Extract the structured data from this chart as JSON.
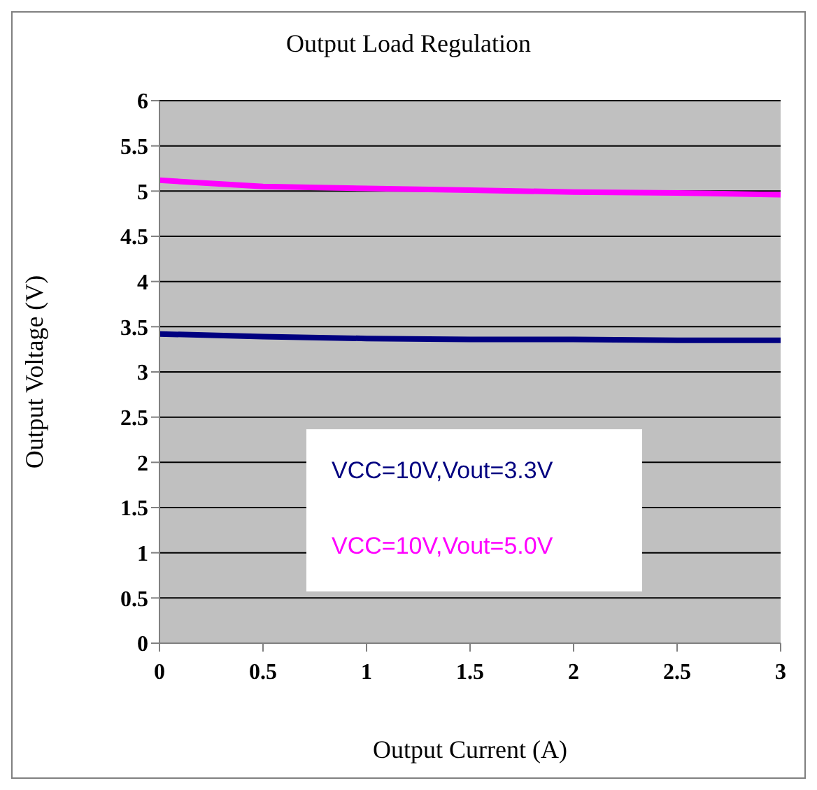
{
  "chart_data": {
    "type": "line",
    "title": "Output Load Regulation",
    "xlabel": "Output Current (A)",
    "ylabel": "Output Voltage (V)",
    "x": [
      0,
      0.5,
      1,
      1.5,
      2,
      2.5,
      3
    ],
    "series": [
      {
        "name": "VCC=10V,Vout=3.3V",
        "color": "#000080",
        "values": [
          3.42,
          3.39,
          3.37,
          3.36,
          3.36,
          3.35,
          3.35
        ]
      },
      {
        "name": "VCC=10V,Vout=5.0V",
        "color": "#ff00ff",
        "values": [
          5.12,
          5.05,
          5.03,
          5.01,
          4.99,
          4.98,
          4.96
        ]
      }
    ],
    "xlim": [
      0,
      3
    ],
    "xticks": [
      0,
      0.5,
      1,
      1.5,
      2,
      2.5,
      3
    ],
    "ylim": [
      0,
      6
    ],
    "yticks": [
      0,
      0.5,
      1,
      1.5,
      2,
      2.5,
      3,
      3.5,
      4,
      4.5,
      5,
      5.5,
      6
    ],
    "grid": "y",
    "legend": "bottom",
    "marker": "none",
    "line_style": "solid"
  }
}
